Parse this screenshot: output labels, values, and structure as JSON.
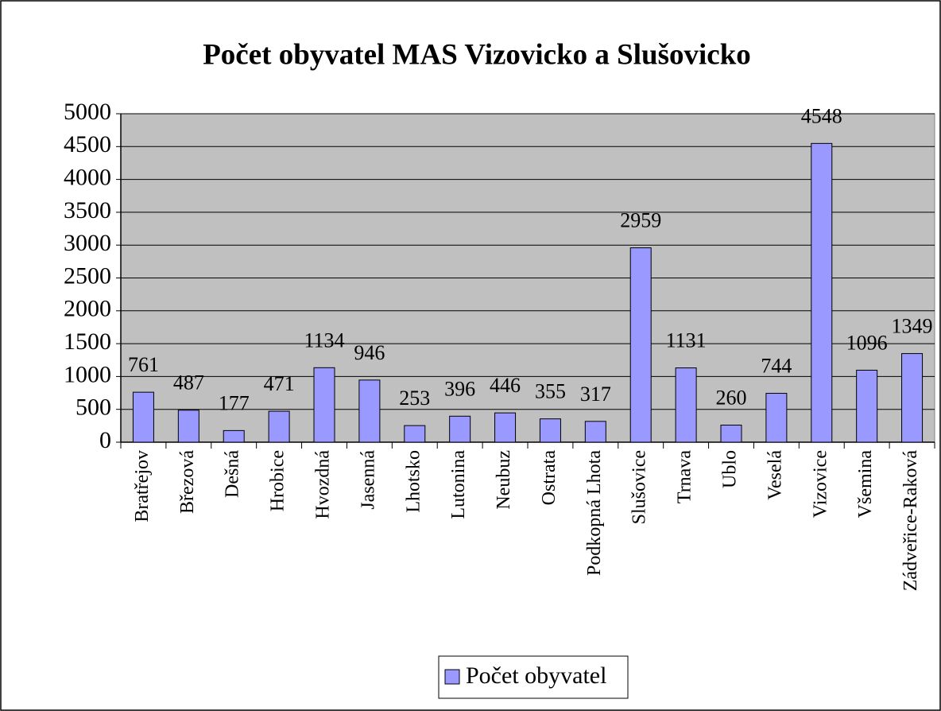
{
  "chart_data": {
    "type": "bar",
    "title": "Počet obyvatel MAS Vizovicko a Slušovicko",
    "categories": [
      "Bratřejov",
      "Březová",
      "Dešná",
      "Hrobice",
      "Hvozdná",
      "Jasenná",
      "Lhotsko",
      "Lutonina",
      "Neubuz",
      "Ostrata",
      "Podkopná Lhota",
      "Slušovice",
      "Trnava",
      "Ublo",
      "Veselá",
      "Vizovice",
      "Všemina",
      "Zádveřice-Raková"
    ],
    "series": [
      {
        "name": "Počet obyvatel",
        "color": "#9999ff",
        "values": [
          761,
          487,
          177,
          471,
          1134,
          946,
          253,
          396,
          446,
          355,
          317,
          2959,
          1131,
          260,
          744,
          4548,
          1096,
          1349
        ]
      }
    ],
    "ylim": [
      0,
      5000
    ],
    "yticks": [
      0,
      500,
      1000,
      1500,
      2000,
      2500,
      3000,
      3500,
      4000,
      4500,
      5000
    ],
    "grid": true,
    "legend": "bottom"
  }
}
